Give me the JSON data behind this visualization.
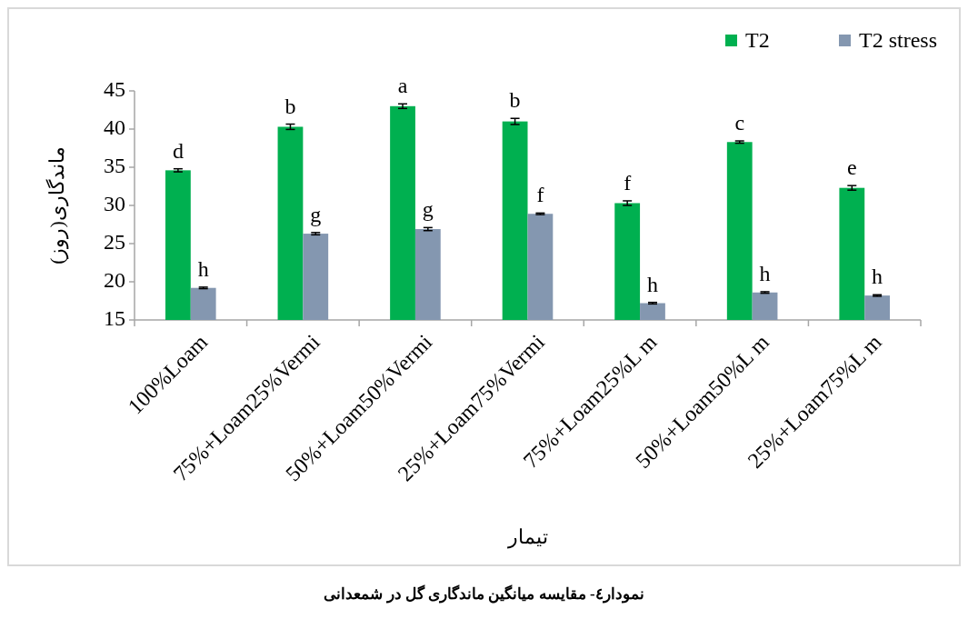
{
  "chart_data": {
    "type": "bar",
    "xlabel": "تیمار",
    "ylabel": "ماندگاری(روز)",
    "categories": [
      "100%Loam",
      "75%+Loam25%Vermi",
      "50%+Loam50%Vermi",
      "25%+Loam75%Vermi",
      "75%+Loam25%L m",
      "50%+Loam50%L m",
      "25%+Loam75%L m"
    ],
    "series": [
      {
        "name": "T2",
        "color": "#00b050",
        "values": [
          34.6,
          40.3,
          43.0,
          41.0,
          30.3,
          38.3,
          32.3
        ],
        "errors": [
          0.2,
          0.35,
          0.3,
          0.4,
          0.3,
          0.15,
          0.3
        ]
      },
      {
        "name": "T2 stress",
        "color": "#8497b0",
        "values": [
          19.2,
          26.3,
          26.9,
          28.9,
          17.2,
          18.6,
          18.2
        ],
        "errors": [
          0.1,
          0.15,
          0.2,
          0.1,
          0.1,
          0.1,
          0.1
        ]
      }
    ],
    "ylim": [
      15,
      45
    ],
    "yticks": [
      15,
      20,
      25,
      30,
      35,
      40,
      45
    ],
    "grid": false,
    "legend": "top right",
    "annotations": [
      "d",
      "h",
      "b",
      "g",
      "a",
      "g",
      "b",
      "f",
      "f",
      "h",
      "c",
      "h",
      "e",
      "h",
      "نمودار٤- مقایسه میانگین ماندگاری گل در شمعدانی"
    ]
  }
}
